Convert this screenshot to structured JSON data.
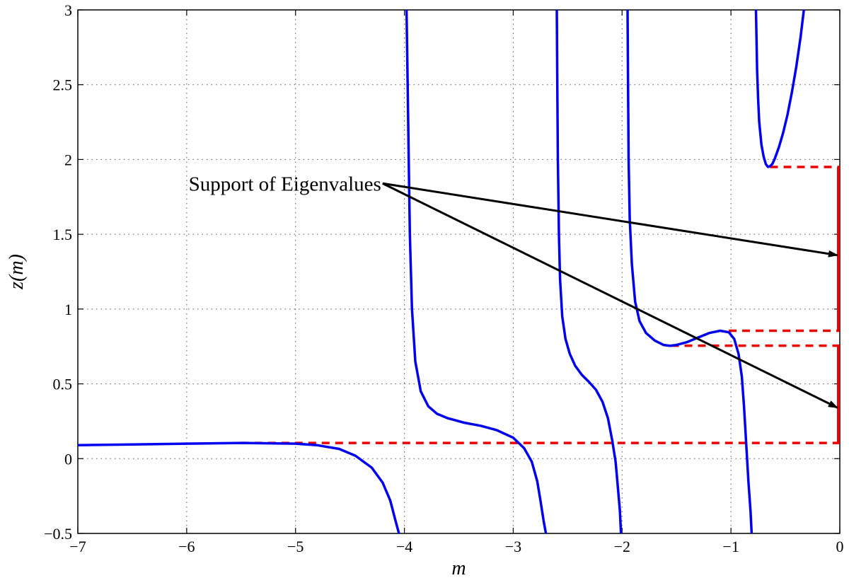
{
  "chart_data": {
    "type": "line",
    "xlabel": "m",
    "ylabel": "z(m)",
    "xlim": [
      -7,
      0
    ],
    "ylim": [
      -0.5,
      3
    ],
    "xticks": [
      -7,
      -6,
      -5,
      -4,
      -3,
      -2,
      -1,
      0
    ],
    "yticks": [
      -0.5,
      0,
      0.5,
      1,
      1.5,
      2,
      2.5,
      3
    ],
    "xtick_labels": [
      "−7",
      "−6",
      "−5",
      "−4",
      "−3",
      "−2",
      "−1",
      "0"
    ],
    "ytick_labels": [
      "−0.5",
      "0",
      "0.5",
      "1",
      "1.5",
      "2",
      "2.5",
      "3"
    ],
    "grid": true,
    "curve_color": "#0000ee",
    "support_color": "#ee0000",
    "series": [
      {
        "x": [
          -7.0,
          -6.5,
          -6.0,
          -5.5,
          -5.0,
          -4.8,
          -4.6,
          -4.45,
          -4.3,
          -4.2,
          -4.13,
          -4.08,
          -4.05
        ],
        "y": [
          0.09,
          0.095,
          0.1,
          0.105,
          0.1,
          0.09,
          0.065,
          0.02,
          -0.06,
          -0.16,
          -0.28,
          -0.42,
          -0.5
        ]
      },
      {
        "x": [
          -3.98,
          -3.97,
          -3.96,
          -3.95,
          -3.93,
          -3.9,
          -3.85,
          -3.78,
          -3.7,
          -3.6,
          -3.45,
          -3.3,
          -3.15,
          -3.0,
          -2.9,
          -2.83,
          -2.78,
          -2.75,
          -2.72,
          -2.7
        ],
        "y": [
          3.0,
          2.5,
          2.0,
          1.5,
          1.0,
          0.65,
          0.45,
          0.35,
          0.3,
          0.27,
          0.24,
          0.22,
          0.19,
          0.14,
          0.07,
          -0.02,
          -0.15,
          -0.28,
          -0.42,
          -0.5
        ]
      },
      {
        "x": [
          -2.6,
          -2.595,
          -2.59,
          -2.58,
          -2.57,
          -2.55,
          -2.52,
          -2.48,
          -2.43,
          -2.37,
          -2.3,
          -2.24,
          -2.18,
          -2.13,
          -2.09,
          -2.06,
          -2.04,
          -2.02,
          -2.01
        ],
        "y": [
          3.0,
          2.5,
          2.0,
          1.5,
          1.2,
          0.95,
          0.8,
          0.7,
          0.62,
          0.56,
          0.51,
          0.46,
          0.38,
          0.27,
          0.12,
          -0.02,
          -0.18,
          -0.35,
          -0.5
        ]
      },
      {
        "x": [
          -1.95,
          -1.945,
          -1.94,
          -1.93,
          -1.91,
          -1.88,
          -1.84,
          -1.78,
          -1.7,
          -1.62,
          -1.56,
          -1.5,
          -1.4,
          -1.3,
          -1.2,
          -1.1,
          -1.02,
          -0.97,
          -0.93,
          -0.9,
          -0.88,
          -0.86,
          -0.84,
          -0.82,
          -0.81
        ],
        "y": [
          3.0,
          2.5,
          2.0,
          1.6,
          1.3,
          1.05,
          0.92,
          0.84,
          0.79,
          0.76,
          0.755,
          0.76,
          0.78,
          0.81,
          0.84,
          0.855,
          0.845,
          0.8,
          0.7,
          0.55,
          0.35,
          0.1,
          -0.15,
          -0.35,
          -0.5
        ]
      },
      {
        "x": [
          -0.77,
          -0.765,
          -0.76,
          -0.75,
          -0.74,
          -0.72,
          -0.7,
          -0.68,
          -0.66,
          -0.64,
          -0.62,
          -0.6,
          -0.56,
          -0.52,
          -0.48,
          -0.44,
          -0.4,
          -0.36,
          -0.33
        ],
        "y": [
          3.0,
          2.8,
          2.6,
          2.4,
          2.25,
          2.1,
          2.02,
          1.97,
          1.95,
          1.955,
          1.97,
          2.0,
          2.08,
          2.18,
          2.3,
          2.45,
          2.62,
          2.82,
          3.0
        ]
      }
    ],
    "support_levels": [
      {
        "x_from": -5.5,
        "y": 0.105
      },
      {
        "x_from": -1.55,
        "y": 0.755
      },
      {
        "x_from": -1.02,
        "y": 0.855
      },
      {
        "x_from": -0.64,
        "y": 1.95
      }
    ],
    "support_intervals": [
      {
        "y_from": 0.105,
        "y_to": 0.755
      },
      {
        "y_from": 0.855,
        "y_to": 1.95
      }
    ],
    "annotations": [
      {
        "text": "Support of Eigenvalues",
        "from": {
          "x": -4.2,
          "y": 1.84
        },
        "to": [
          {
            "x": -0.02,
            "y": 1.36
          },
          {
            "x": -0.02,
            "y": 0.34
          }
        ]
      }
    ]
  }
}
